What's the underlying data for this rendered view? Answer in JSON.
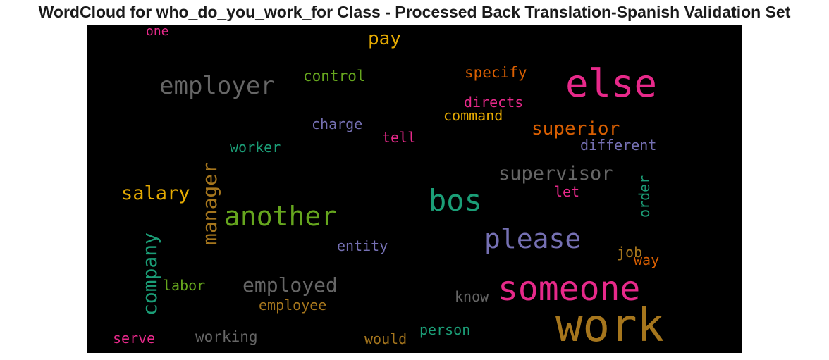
{
  "chart_data": {
    "type": "wordcloud",
    "title": "WordCloud for who_do_you_work_for Class - Processed Back Translation-Spanish Validation Set",
    "background": "#000000",
    "words": [
      {
        "text": "work",
        "color": "#a6761d",
        "weight": 64
      },
      {
        "text": "else",
        "color": "#e7298a",
        "weight": 54
      },
      {
        "text": "someone",
        "color": "#e7298a",
        "weight": 48
      },
      {
        "text": "bos",
        "color": "#1b9e77",
        "weight": 42
      },
      {
        "text": "another",
        "color": "#66a61e",
        "weight": 38
      },
      {
        "text": "please",
        "color": "#7570b3",
        "weight": 38
      },
      {
        "text": "employer",
        "color": "#666666",
        "weight": 34
      },
      {
        "text": "employed",
        "color": "#666666",
        "weight": 28
      },
      {
        "text": "company",
        "color": "#1b9e77",
        "weight": 28,
        "rotate": true
      },
      {
        "text": "manager",
        "color": "#a6761d",
        "weight": 28,
        "rotate": true
      },
      {
        "text": "supervisor",
        "color": "#666666",
        "weight": 27
      },
      {
        "text": "salary",
        "color": "#e6ab02",
        "weight": 27
      },
      {
        "text": "superior",
        "color": "#d95f02",
        "weight": 26
      },
      {
        "text": "pay",
        "color": "#e6ab02",
        "weight": 26
      },
      {
        "text": "control",
        "color": "#66a61e",
        "weight": 21
      },
      {
        "text": "specify",
        "color": "#d95f02",
        "weight": 21
      },
      {
        "text": "command",
        "color": "#e6ab02",
        "weight": 20
      },
      {
        "text": "directs",
        "color": "#e7298a",
        "weight": 20
      },
      {
        "text": "different",
        "color": "#7570b3",
        "weight": 20
      },
      {
        "text": "charge",
        "color": "#7570b3",
        "weight": 20
      },
      {
        "text": "tell",
        "color": "#e7298a",
        "weight": 20
      },
      {
        "text": "worker",
        "color": "#1b9e77",
        "weight": 20
      },
      {
        "text": "let",
        "color": "#e7298a",
        "weight": 20
      },
      {
        "text": "order",
        "color": "#1b9e77",
        "weight": 20,
        "rotate": true
      },
      {
        "text": "entity",
        "color": "#7570b3",
        "weight": 20
      },
      {
        "text": "job",
        "color": "#a6761d",
        "weight": 20
      },
      {
        "text": "way",
        "color": "#d95f02",
        "weight": 20
      },
      {
        "text": "labor",
        "color": "#66a61e",
        "weight": 20
      },
      {
        "text": "employee",
        "color": "#a6761d",
        "weight": 20
      },
      {
        "text": "know",
        "color": "#666666",
        "weight": 20
      },
      {
        "text": "person",
        "color": "#1b9e77",
        "weight": 20
      },
      {
        "text": "working",
        "color": "#666666",
        "weight": 21
      },
      {
        "text": "serve",
        "color": "#e7298a",
        "weight": 20
      },
      {
        "text": "would",
        "color": "#a6761d",
        "weight": 20
      },
      {
        "text": "one",
        "color": "#e7298a",
        "weight": 18
      }
    ]
  }
}
